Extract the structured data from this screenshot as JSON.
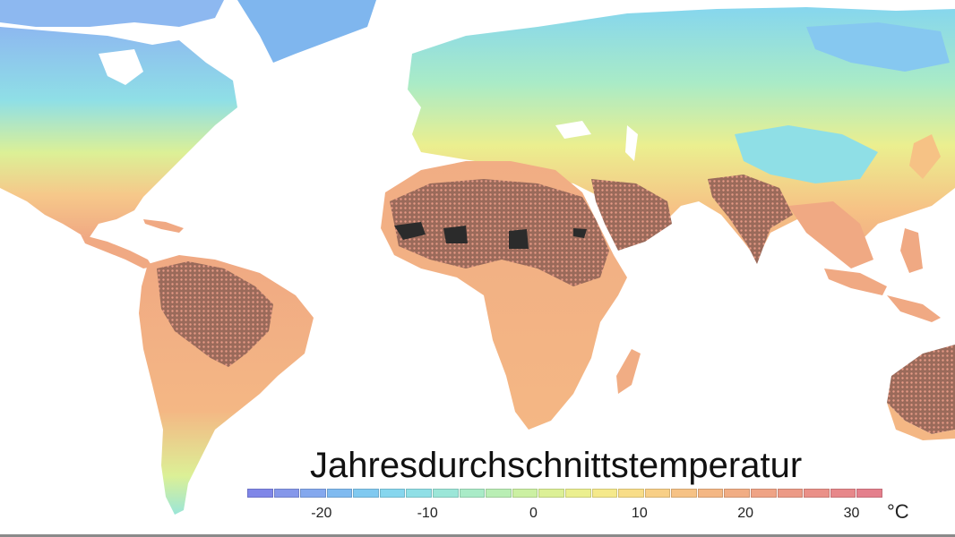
{
  "map": {
    "title": "Jahresdurchschnittstemperatur",
    "unit": "°C",
    "legend_ticks": [
      {
        "label": "-20",
        "value": -20
      },
      {
        "label": "-10",
        "value": -10
      },
      {
        "label": "0",
        "value": 0
      },
      {
        "label": "10",
        "value": 10
      },
      {
        "label": "20",
        "value": 20
      },
      {
        "label": "30",
        "value": 30
      }
    ],
    "legend_range": [
      -27,
      33
    ],
    "legend_colors": [
      "#7f86e8",
      "#8597ea",
      "#84a8ee",
      "#7fbaf0",
      "#80c9f0",
      "#86d6ee",
      "#8fdfe6",
      "#9be6d8",
      "#a9ebc7",
      "#b9eeb4",
      "#cbf0a2",
      "#dcf096",
      "#ebef8f",
      "#f5e98b",
      "#f8dd88",
      "#f8cf86",
      "#f6c285",
      "#f4b784",
      "#f1ad84",
      "#efa385",
      "#ec9a86",
      "#ea9088",
      "#e7878a",
      "#e47f8c"
    ],
    "colors": {
      "cold": "#8ec6f2",
      "cool": "#9ee6d6",
      "mild": "#eaf08e",
      "warm": "#f6c98a",
      "hot": "#f0a983",
      "very_hot_hatch": "#8b5a4c",
      "extreme": "#2b2b2b"
    }
  }
}
